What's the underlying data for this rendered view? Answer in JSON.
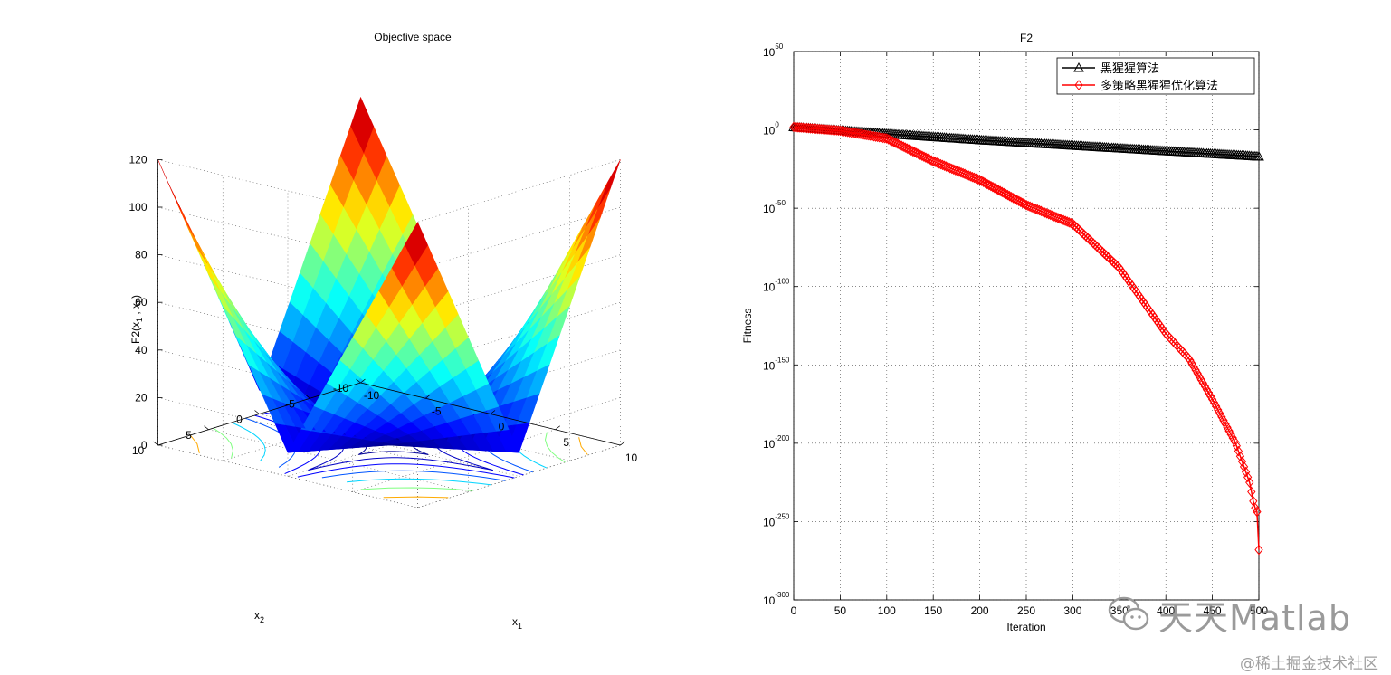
{
  "chart_data": [
    {
      "type": "surface",
      "title": "Objective space",
      "xlabel_base": "x",
      "xlabel_sub": "1",
      "ylabel_base": "x",
      "ylabel_sub": "2",
      "zlabel_parts": [
        "F2(x",
        "1",
        " , x",
        "2",
        ")"
      ],
      "x_ticks": [
        "-10",
        "-5",
        "0",
        "5",
        "10"
      ],
      "y_ticks": [
        "-10",
        "-5",
        "0",
        "5",
        "10"
      ],
      "z_ticks": [
        "0",
        "20",
        "40",
        "60",
        "80",
        "100",
        "120"
      ],
      "xlim": [
        -10,
        10
      ],
      "ylim": [
        -10,
        10
      ],
      "zlim": [
        0,
        120
      ],
      "function": "|x1| + |x2| + |x1|*|x2|",
      "colormap": "jet",
      "contours_on_floor": true,
      "grid": true
    },
    {
      "type": "line",
      "title": "F2",
      "xlabel": "Iteration",
      "ylabel": "Fitness",
      "y_scale": "log",
      "xlim": [
        0,
        500
      ],
      "ylim_exp": [
        -300,
        50
      ],
      "x_ticks": [
        "0",
        "50",
        "100",
        "150",
        "200",
        "250",
        "300",
        "350",
        "400",
        "450",
        "500"
      ],
      "y_tick_base": "10",
      "y_tick_exps": [
        "50",
        "0",
        "-50",
        "-100",
        "-150",
        "-200",
        "-250",
        "-300"
      ],
      "grid": true,
      "legend_position": "top-right",
      "series": [
        {
          "name": "黑猩猩算法",
          "color": "#000000",
          "marker": "triangle",
          "x": [
            0,
            100,
            200,
            300,
            400,
            500
          ],
          "log10_y": [
            1.8,
            -2.5,
            -6.5,
            -10.0,
            -13.5,
            -17.0
          ]
        },
        {
          "name": "多策略黑猩猩优化算法",
          "color": "#ff0000",
          "marker": "diamond",
          "x": [
            0,
            50,
            100,
            150,
            200,
            250,
            300,
            350,
            400,
            425,
            450,
            475,
            490,
            495,
            499,
            500
          ],
          "log10_y": [
            1.8,
            -0.5,
            -5.5,
            -20.0,
            -32.0,
            -48.0,
            -60.0,
            -88.0,
            -130.0,
            -146.0,
            -172.0,
            -200.0,
            -225.0,
            -240.0,
            -245.0,
            -268.0
          ]
        }
      ]
    }
  ],
  "watermark": {
    "brand": "天天Matlab",
    "community": "@稀土掘金技术社区"
  }
}
